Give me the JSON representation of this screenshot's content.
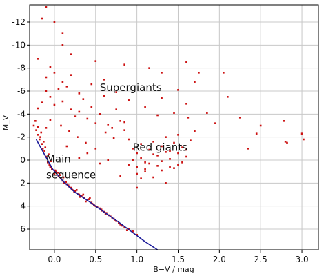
{
  "chart_data": {
    "type": "scatter",
    "title": "",
    "xlabel": "B−V / mag",
    "ylabel": "M_V",
    "xlim": [
      -0.3,
      3.2
    ],
    "ylim": [
      7.8,
      -13.5
    ],
    "y_inverted": true,
    "grid": true,
    "x_ticks": [
      {
        "value": 0.0,
        "label": "0.0"
      },
      {
        "value": 0.5,
        "label": "0.5"
      },
      {
        "value": 1.0,
        "label": "1.0"
      },
      {
        "value": 1.5,
        "label": "1.5"
      },
      {
        "value": 2.0,
        "label": "2.0"
      },
      {
        "value": 2.5,
        "label": "2.5"
      },
      {
        "value": 3.0,
        "label": "3.0"
      }
    ],
    "y_ticks": [
      {
        "value": -12,
        "label": "-12"
      },
      {
        "value": -10,
        "label": "-10"
      },
      {
        "value": -8,
        "label": "-8"
      },
      {
        "value": -6,
        "label": "-6"
      },
      {
        "value": -4,
        "label": "-4"
      },
      {
        "value": -2,
        "label": "-2"
      },
      {
        "value": 0,
        "label": "0"
      },
      {
        "value": 2,
        "label": "2"
      },
      {
        "value": 4,
        "label": "4"
      },
      {
        "value": 6,
        "label": "6"
      }
    ],
    "annotations": [
      {
        "name": "supergiants",
        "text": "Supergiants",
        "x": 0.55,
        "y": -6.0
      },
      {
        "name": "red-giants",
        "text": "Red giants",
        "x": 0.95,
        "y": -0.8
      },
      {
        "name": "main-sequence-1",
        "text": "Main",
        "x": -0.1,
        "y": 0.2
      },
      {
        "name": "main-sequence-2",
        "text": "sequence",
        "x": -0.1,
        "y": 1.6
      }
    ],
    "colors": {
      "points": "#cc1111",
      "main_sequence_line": "#1a1a99",
      "grid": "#c8c8c8",
      "frame": "#000000"
    },
    "main_sequence_line": {
      "x": [
        -0.22,
        -0.12,
        -0.02,
        0.1,
        0.25,
        0.42,
        0.6,
        0.78,
        0.95,
        1.1,
        1.25
      ],
      "y": [
        -1.8,
        -0.5,
        0.8,
        1.8,
        2.8,
        3.6,
        4.5,
        5.4,
        6.3,
        7.1,
        7.8
      ]
    },
    "series": [
      {
        "kind": "main-sequence",
        "x": [
          -0.25,
          -0.22,
          -0.2,
          -0.18,
          -0.17,
          -0.15,
          -0.14,
          -0.12,
          -0.1,
          -0.08,
          -0.06,
          -0.05,
          -0.03,
          0.0,
          0.02,
          0.05,
          0.08,
          0.1,
          0.12,
          0.15,
          0.18,
          0.2,
          0.22,
          0.25,
          0.28,
          0.3,
          0.33,
          0.36,
          0.4,
          0.42,
          0.45,
          0.48,
          0.5,
          0.55,
          0.58,
          0.6,
          0.63,
          0.66,
          0.7,
          0.72,
          0.75,
          0.78,
          0.8,
          0.85,
          0.9,
          0.95,
          1.0,
          -0.23,
          -0.2,
          -0.16,
          -0.13,
          -0.11,
          -0.07,
          -0.04,
          0.01,
          0.04,
          0.07,
          0.11,
          0.14,
          0.17,
          0.21,
          0.24,
          0.27,
          0.31,
          0.35,
          0.38,
          0.43,
          0.46,
          0.52,
          0.57,
          0.62,
          0.68,
          0.74,
          0.82,
          0.88
        ],
        "y": [
          -3.0,
          -2.6,
          -2.2,
          -1.8,
          -2.0,
          -1.4,
          -1.0,
          -0.8,
          -0.3,
          0.2,
          0.4,
          0.6,
          0.8,
          1.2,
          1.0,
          1.4,
          1.6,
          1.8,
          2.0,
          2.1,
          2.3,
          2.4,
          2.6,
          2.7,
          2.9,
          3.0,
          3.1,
          3.3,
          3.5,
          3.4,
          3.7,
          3.9,
          4.0,
          4.2,
          4.4,
          4.5,
          4.6,
          4.8,
          5.0,
          5.1,
          5.3,
          5.5,
          5.6,
          5.8,
          6.0,
          6.2,
          6.5,
          -3.4,
          -2.9,
          -2.4,
          -1.6,
          -1.1,
          -0.5,
          0.1,
          0.9,
          1.1,
          1.3,
          1.5,
          1.9,
          2.2,
          2.5,
          2.8,
          2.6,
          3.2,
          3.0,
          3.6,
          3.3,
          3.8,
          4.1,
          4.3,
          4.7,
          4.9,
          5.2,
          5.7,
          6.1
        ]
      },
      {
        "kind": "giants-and-supergiants",
        "x": [
          -0.2,
          -0.15,
          -0.1,
          -0.05,
          0.0,
          0.05,
          0.1,
          0.15,
          0.2,
          0.25,
          0.3,
          0.35,
          0.4,
          0.45,
          0.5,
          0.55,
          0.6,
          0.65,
          0.7,
          0.75,
          0.8,
          0.85,
          0.9,
          0.95,
          1.0,
          1.05,
          1.1,
          1.15,
          1.2,
          1.25,
          1.3,
          1.35,
          1.4,
          1.45,
          1.5,
          1.55,
          1.6,
          1.65,
          1.7,
          0.9,
          0.95,
          1.0,
          1.05,
          1.1,
          1.15,
          1.2,
          1.25,
          1.3,
          1.35,
          1.4,
          1.45,
          1.5,
          1.55,
          1.6,
          1.0,
          1.1,
          1.2,
          1.3,
          1.4,
          1.5,
          -0.1,
          0.0,
          0.1,
          0.2,
          0.3,
          0.45,
          0.6,
          0.75,
          0.9,
          1.1,
          1.3,
          1.5,
          1.6,
          1.7,
          -0.05,
          0.08,
          0.18,
          0.28,
          0.38,
          0.5,
          0.62,
          0.72,
          0.85,
          1.25,
          1.45,
          1.62,
          0.3,
          0.55,
          0.8,
          1.05,
          1.35,
          -0.1,
          0.15,
          0.4,
          0.65,
          1.0
        ],
        "y": [
          -4.5,
          -5.0,
          -6.0,
          -5.5,
          -4.8,
          -6.2,
          -5.1,
          -6.4,
          -4.4,
          -3.8,
          -4.2,
          -5.3,
          -3.6,
          -4.6,
          -3.2,
          -4.0,
          -5.6,
          -3.1,
          -2.8,
          -4.4,
          -3.4,
          -2.6,
          -1.8,
          -1.0,
          -0.6,
          -1.4,
          0.2,
          -0.9,
          -1.6,
          -0.4,
          -1.2,
          -2.0,
          -0.8,
          -1.5,
          -2.2,
          -1.1,
          -0.3,
          -1.7,
          -2.5,
          0.4,
          0.0,
          0.6,
          -0.2,
          0.8,
          0.3,
          -0.5,
          0.5,
          0.1,
          -0.7,
          -0.1,
          0.7,
          -0.6,
          0.2,
          -0.9,
          1.2,
          1.0,
          1.5,
          0.9,
          0.6,
          0.4,
          -7.2,
          -7.6,
          -6.8,
          -7.4,
          -5.8,
          -6.6,
          -7.0,
          -5.9,
          -5.2,
          -4.6,
          -5.4,
          -6.1,
          -4.9,
          -6.8,
          -3.5,
          -3.0,
          -2.5,
          -2.0,
          -1.5,
          -1.0,
          -2.4,
          -1.9,
          -3.3,
          -3.9,
          -4.1,
          -3.7,
          -0.2,
          0.3,
          1.4,
          1.6,
          2.0,
          -2.8,
          -1.2,
          -0.6,
          0.0,
          2.4
        ]
      },
      {
        "kind": "outliers",
        "x": [
          -0.1,
          -0.15,
          0.0,
          0.1,
          0.2,
          -0.2,
          -0.05,
          0.5,
          0.1,
          0.85,
          1.15,
          1.3,
          1.6,
          1.75,
          2.05,
          2.1,
          2.35,
          2.45,
          2.5,
          2.78,
          2.8,
          2.82,
          3.0,
          3.02,
          2.25,
          1.95,
          1.85
        ],
        "y": [
          -13.3,
          -12.3,
          -12.0,
          -10.0,
          -9.2,
          -8.8,
          -8.1,
          -8.6,
          -11.0,
          -8.3,
          -8.0,
          -7.6,
          -8.5,
          -7.6,
          -7.6,
          -5.5,
          -1.0,
          -2.3,
          -3.0,
          -3.4,
          -1.6,
          -1.5,
          -2.3,
          -1.8,
          -3.7,
          -3.2,
          -4.1
        ]
      }
    ]
  }
}
